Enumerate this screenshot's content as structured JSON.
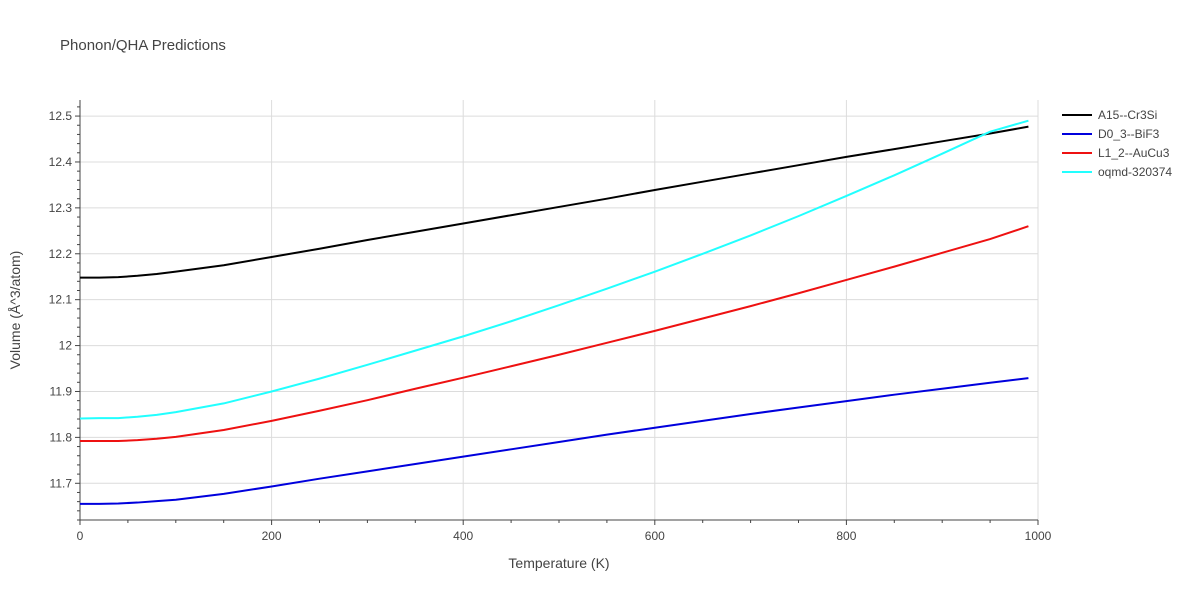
{
  "chart_data": {
    "type": "line",
    "title": "Phonon/QHA Predictions",
    "xlabel": "Temperature (K)",
    "ylabel": "Volume (Å^3/atom)",
    "xlim": [
      0,
      1000
    ],
    "ylim": [
      11.62,
      12.535
    ],
    "x_ticks": [
      0,
      200,
      400,
      600,
      800,
      1000
    ],
    "x_tick_labels": [
      "0",
      "200",
      "400",
      "600",
      "800",
      "1000"
    ],
    "y_ticks": [
      11.7,
      11.8,
      11.9,
      12.0,
      12.1,
      12.2,
      12.3,
      12.4,
      12.5
    ],
    "y_tick_labels": [
      "11.7",
      "11.8",
      "11.9",
      "12",
      "12.1",
      "12.2",
      "12.3",
      "12.4",
      "12.5"
    ],
    "grid": true,
    "legend_position": "top-right",
    "series": [
      {
        "name": "A15--Cr3Si",
        "color": "#000000",
        "x": [
          0,
          20,
          40,
          60,
          80,
          100,
          150,
          200,
          250,
          300,
          350,
          400,
          450,
          500,
          550,
          600,
          650,
          700,
          750,
          800,
          850,
          900,
          950,
          990
        ],
        "y": [
          12.148,
          12.148,
          12.149,
          12.152,
          12.156,
          12.161,
          12.175,
          12.193,
          12.211,
          12.23,
          12.248,
          12.266,
          12.284,
          12.302,
          12.32,
          12.339,
          12.357,
          12.375,
          12.393,
          12.411,
          12.428,
          12.445,
          12.462,
          12.477
        ]
      },
      {
        "name": "D0_3--BiF3",
        "color": "#0000dd",
        "x": [
          0,
          20,
          40,
          60,
          80,
          100,
          150,
          200,
          250,
          300,
          350,
          400,
          450,
          500,
          550,
          600,
          650,
          700,
          750,
          800,
          850,
          900,
          950,
          990
        ],
        "y": [
          11.655,
          11.655,
          11.656,
          11.658,
          11.661,
          11.664,
          11.677,
          11.693,
          11.71,
          11.726,
          11.742,
          11.758,
          11.774,
          11.79,
          11.806,
          11.821,
          11.836,
          11.851,
          11.865,
          11.879,
          11.893,
          11.906,
          11.919,
          11.929
        ]
      },
      {
        "name": "L1_2--AuCu3",
        "color": "#ee1111",
        "x": [
          0,
          20,
          40,
          60,
          80,
          100,
          150,
          200,
          250,
          300,
          350,
          400,
          450,
          500,
          550,
          600,
          650,
          700,
          750,
          800,
          850,
          900,
          950,
          990
        ],
        "y": [
          11.792,
          11.792,
          11.792,
          11.794,
          11.797,
          11.801,
          11.816,
          11.836,
          11.858,
          11.881,
          11.906,
          11.93,
          11.955,
          11.98,
          12.006,
          12.032,
          12.059,
          12.086,
          12.114,
          12.143,
          12.172,
          12.202,
          12.232,
          12.26
        ]
      },
      {
        "name": "oqmd-320374",
        "color": "#22ffff",
        "x": [
          0,
          20,
          40,
          60,
          80,
          100,
          150,
          200,
          250,
          300,
          350,
          400,
          450,
          500,
          550,
          600,
          650,
          700,
          750,
          800,
          850,
          900,
          950,
          990
        ],
        "y": [
          11.841,
          11.842,
          11.842,
          11.845,
          11.849,
          11.855,
          11.874,
          11.9,
          11.928,
          11.958,
          11.989,
          12.02,
          12.053,
          12.088,
          12.124,
          12.161,
          12.2,
          12.24,
          12.282,
          12.326,
          12.371,
          12.418,
          12.466,
          12.49
        ]
      }
    ]
  }
}
